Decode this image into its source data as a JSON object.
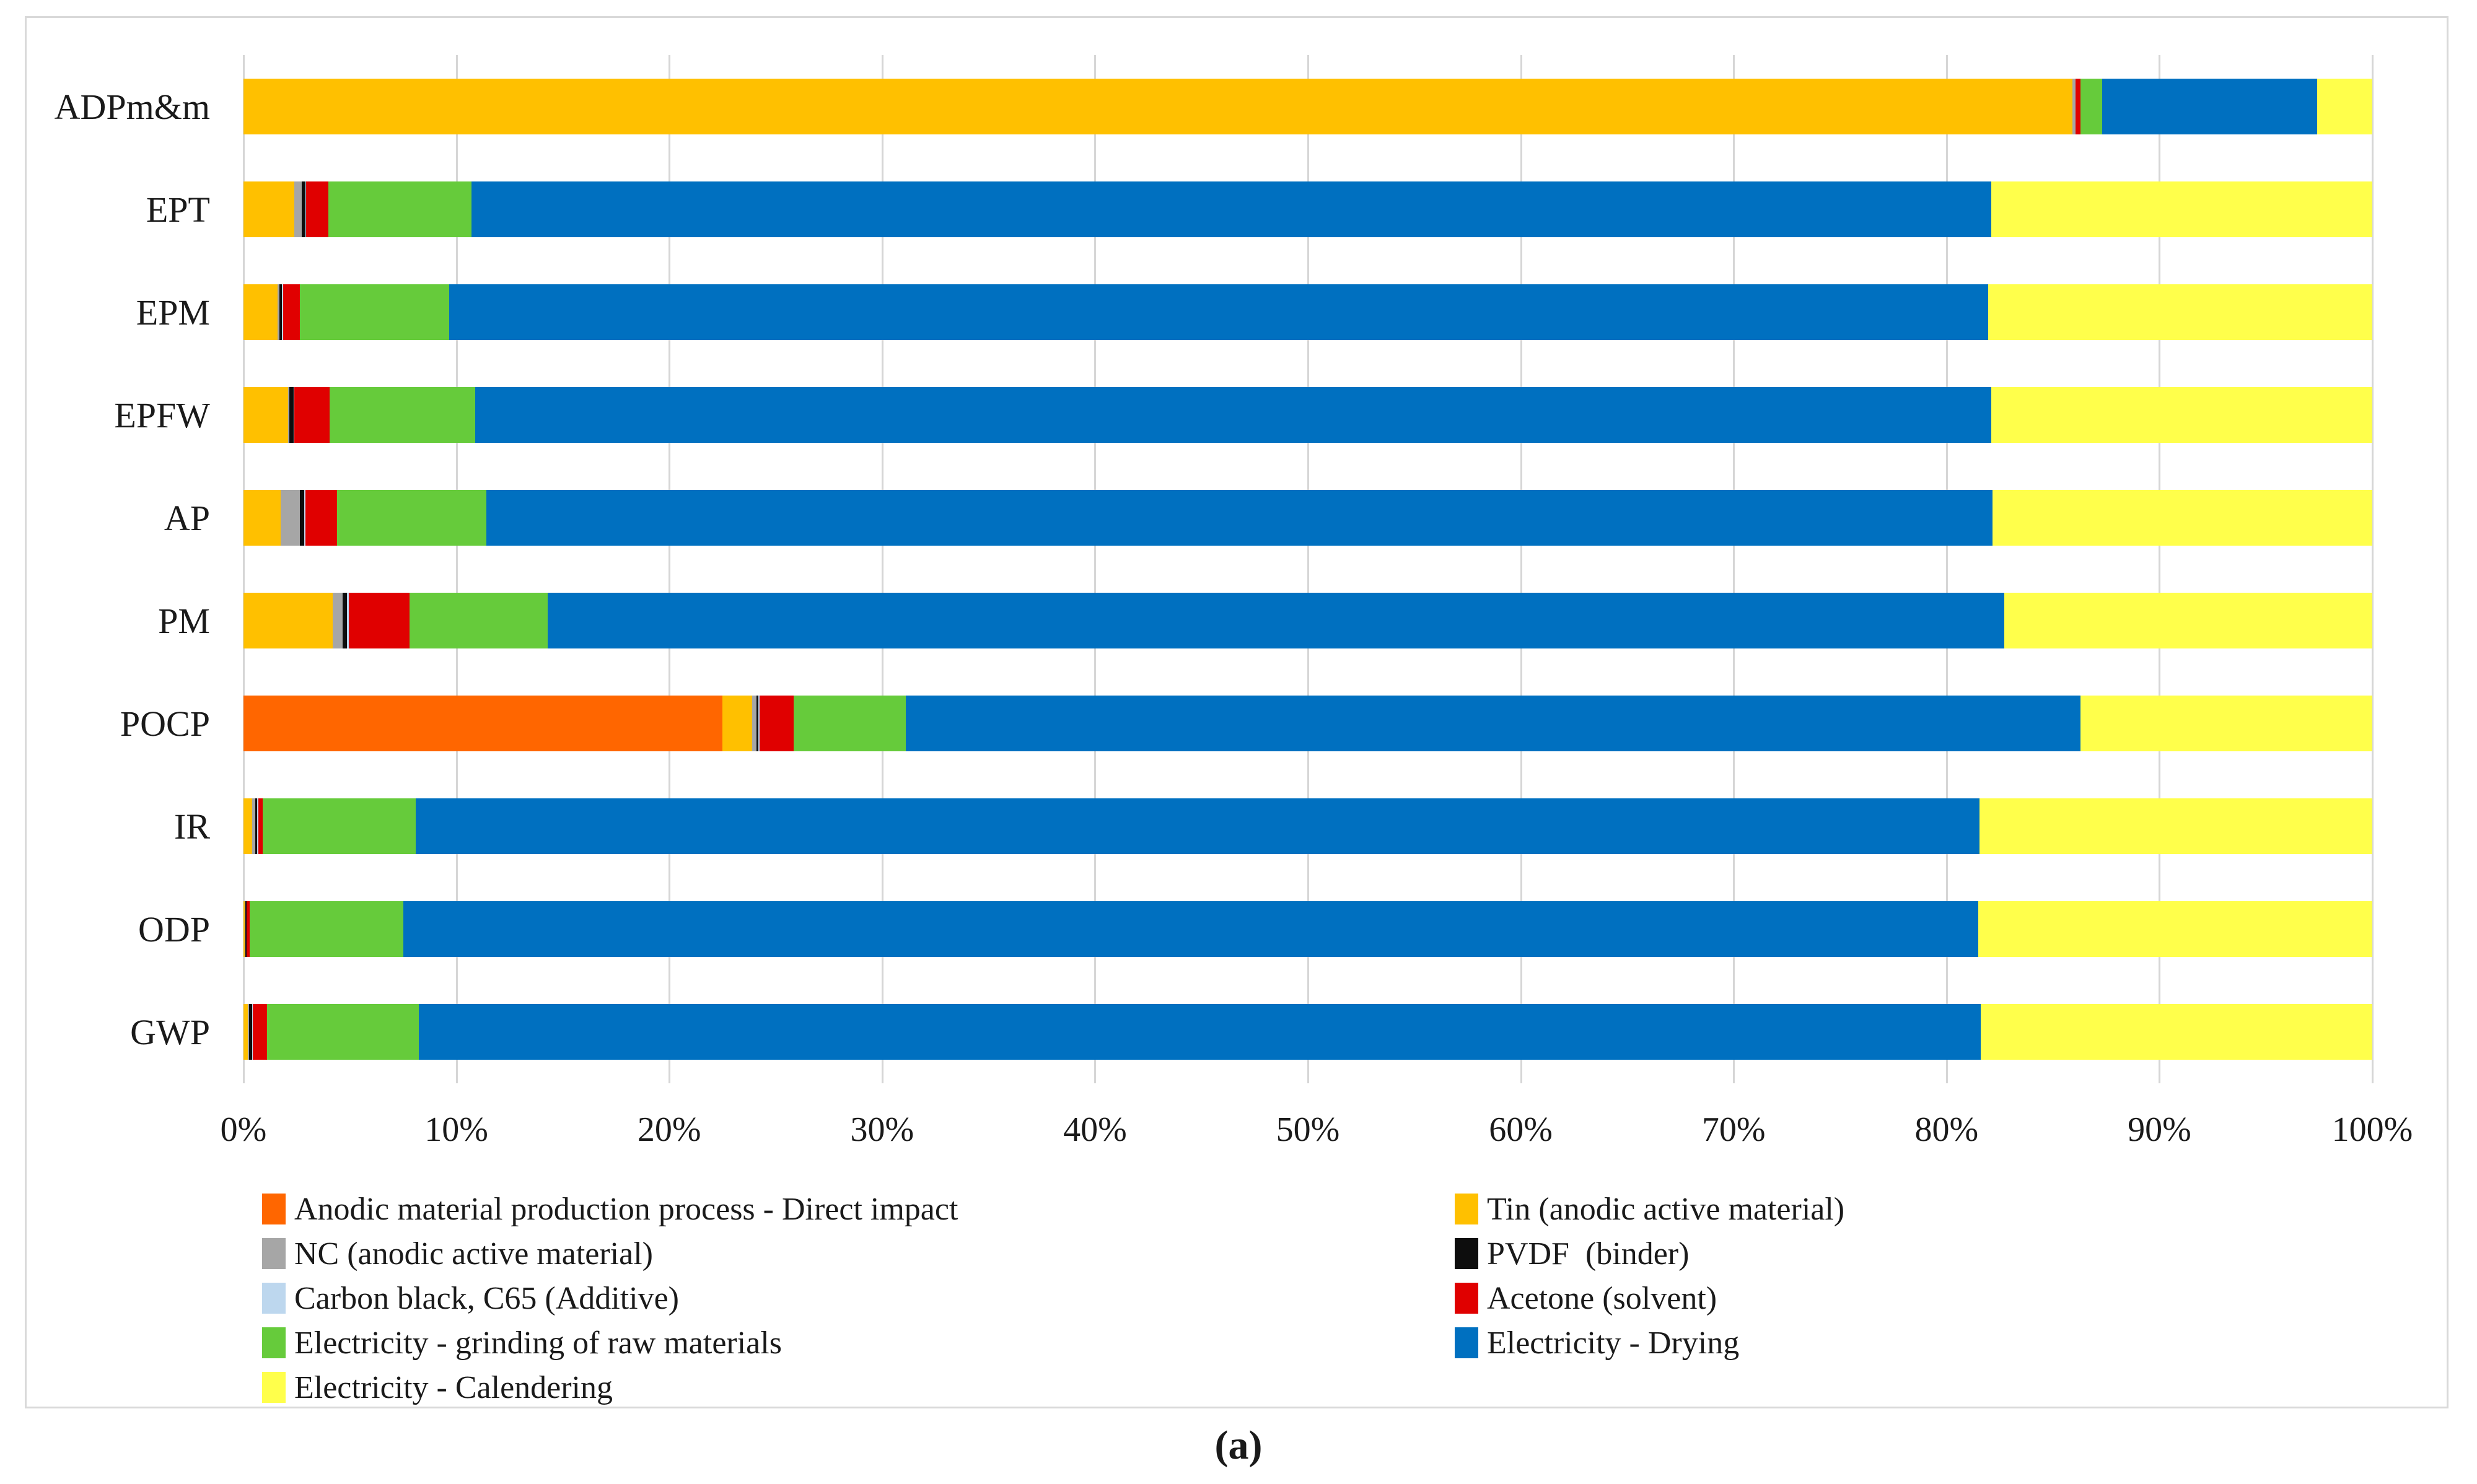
{
  "caption": "(a)",
  "chart_data": {
    "type": "bar",
    "subtype": "horizontal-stacked-100pct",
    "title": "",
    "xlabel": "",
    "ylabel": "",
    "grid": true,
    "legend_position": "bottom-two-columns",
    "x_axis": {
      "min": 0,
      "max": 100,
      "tick_step": 10,
      "ticks": [
        "0%",
        "10%",
        "20%",
        "30%",
        "40%",
        "50%",
        "60%",
        "70%",
        "80%",
        "90%",
        "100%"
      ]
    },
    "categories": [
      "ADPm&m",
      "EPT",
      "EPM",
      "EPFW",
      "AP",
      "PM",
      "POCP",
      "IR",
      "ODP",
      "GWP"
    ],
    "series": [
      {
        "name": "Anodic material production process - Direct impact",
        "color": "#FF6600",
        "values": [
          0,
          0,
          0,
          0,
          0,
          0,
          22.5,
          0,
          0,
          0
        ]
      },
      {
        "name": "Tin (anodic active material)",
        "color": "#FFC000",
        "values": [
          85.9,
          2.4,
          1.6,
          2.1,
          1.75,
          4.2,
          1.4,
          0.4,
          0.05,
          0.2
        ]
      },
      {
        "name": "NC (anodic active material)",
        "color": "#A6A6A6",
        "values": [
          0.15,
          0.35,
          0.1,
          0.05,
          0.9,
          0.45,
          0.2,
          0.15,
          0.05,
          0.05
        ]
      },
      {
        "name": "PVDF  (binder)",
        "color": "#0D0D0D",
        "values": [
          0,
          0.15,
          0.1,
          0.2,
          0.2,
          0.2,
          0.1,
          0.1,
          0.05,
          0.15
        ]
      },
      {
        "name": "Carbon black, C65 (Additive)",
        "color": "#BDD7EE",
        "values": [
          0,
          0.05,
          0.05,
          0.05,
          0.05,
          0.1,
          0.05,
          0.05,
          0,
          0.05
        ]
      },
      {
        "name": "Acetone (solvent)",
        "color": "#E00000",
        "values": [
          0.25,
          1.05,
          0.8,
          1.65,
          1.5,
          2.85,
          1.6,
          0.2,
          0.15,
          0.65
        ]
      },
      {
        "name": "Electricity - grinding of raw materials",
        "color": "#66CB3B",
        "values": [
          1.0,
          6.7,
          7.0,
          6.85,
          7.0,
          6.5,
          5.25,
          7.2,
          7.2,
          7.15
        ]
      },
      {
        "name": "Electricity - Drying",
        "color": "#0070C0",
        "values": [
          10.1,
          71.4,
          72.3,
          71.2,
          70.75,
          68.4,
          55.2,
          73.45,
          74.0,
          73.35
        ]
      },
      {
        "name": "Electricity - Calendering",
        "color": "#FFFF4B",
        "values": [
          2.6,
          17.9,
          18.05,
          17.9,
          17.85,
          17.3,
          13.7,
          18.45,
          18.5,
          18.4
        ]
      }
    ],
    "legend_columns": [
      [
        0,
        2,
        4,
        6,
        8
      ],
      [
        1,
        3,
        5,
        7
      ]
    ]
  }
}
